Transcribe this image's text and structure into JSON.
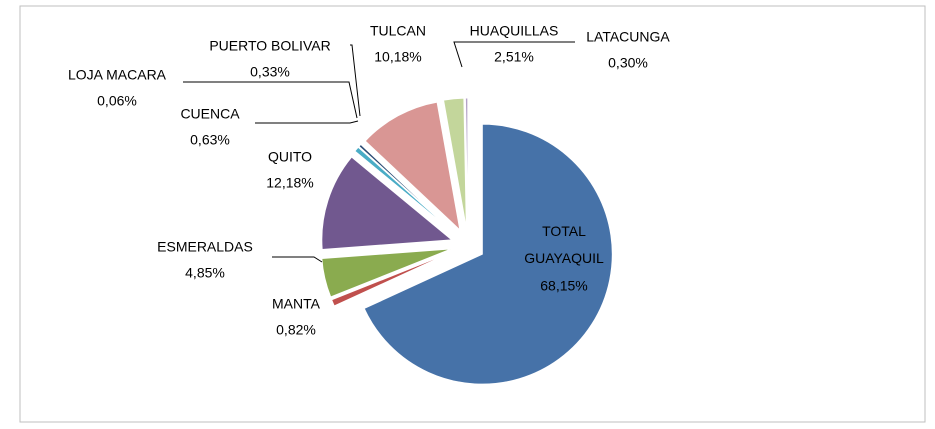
{
  "chart_data": {
    "type": "pie",
    "categories": [
      "TOTAL GUAYAQUIL",
      "MANTA",
      "ESMERALDAS",
      "QUITO",
      "CUENCA",
      "LOJA MACARA",
      "PUERTO BOLIVAR",
      "TULCAN",
      "HUAQUILLAS",
      "LATACUNGA"
    ],
    "values": [
      68.15,
      0.82,
      4.85,
      12.18,
      0.63,
      0.06,
      0.33,
      10.18,
      2.51,
      0.3
    ],
    "value_labels": [
      "68,15%",
      "0,82%",
      "4,85%",
      "12,18%",
      "0,63%",
      "0,06%",
      "0,33%",
      "10,18%",
      "2,51%",
      "0,30%"
    ],
    "colors": [
      "#4672a8",
      "#c0504d",
      "#8aab4f",
      "#71588f",
      "#4aacc6",
      "#f79646",
      "#2c4d75",
      "#d99694",
      "#c3d69b",
      "#b3a2c7"
    ]
  }
}
